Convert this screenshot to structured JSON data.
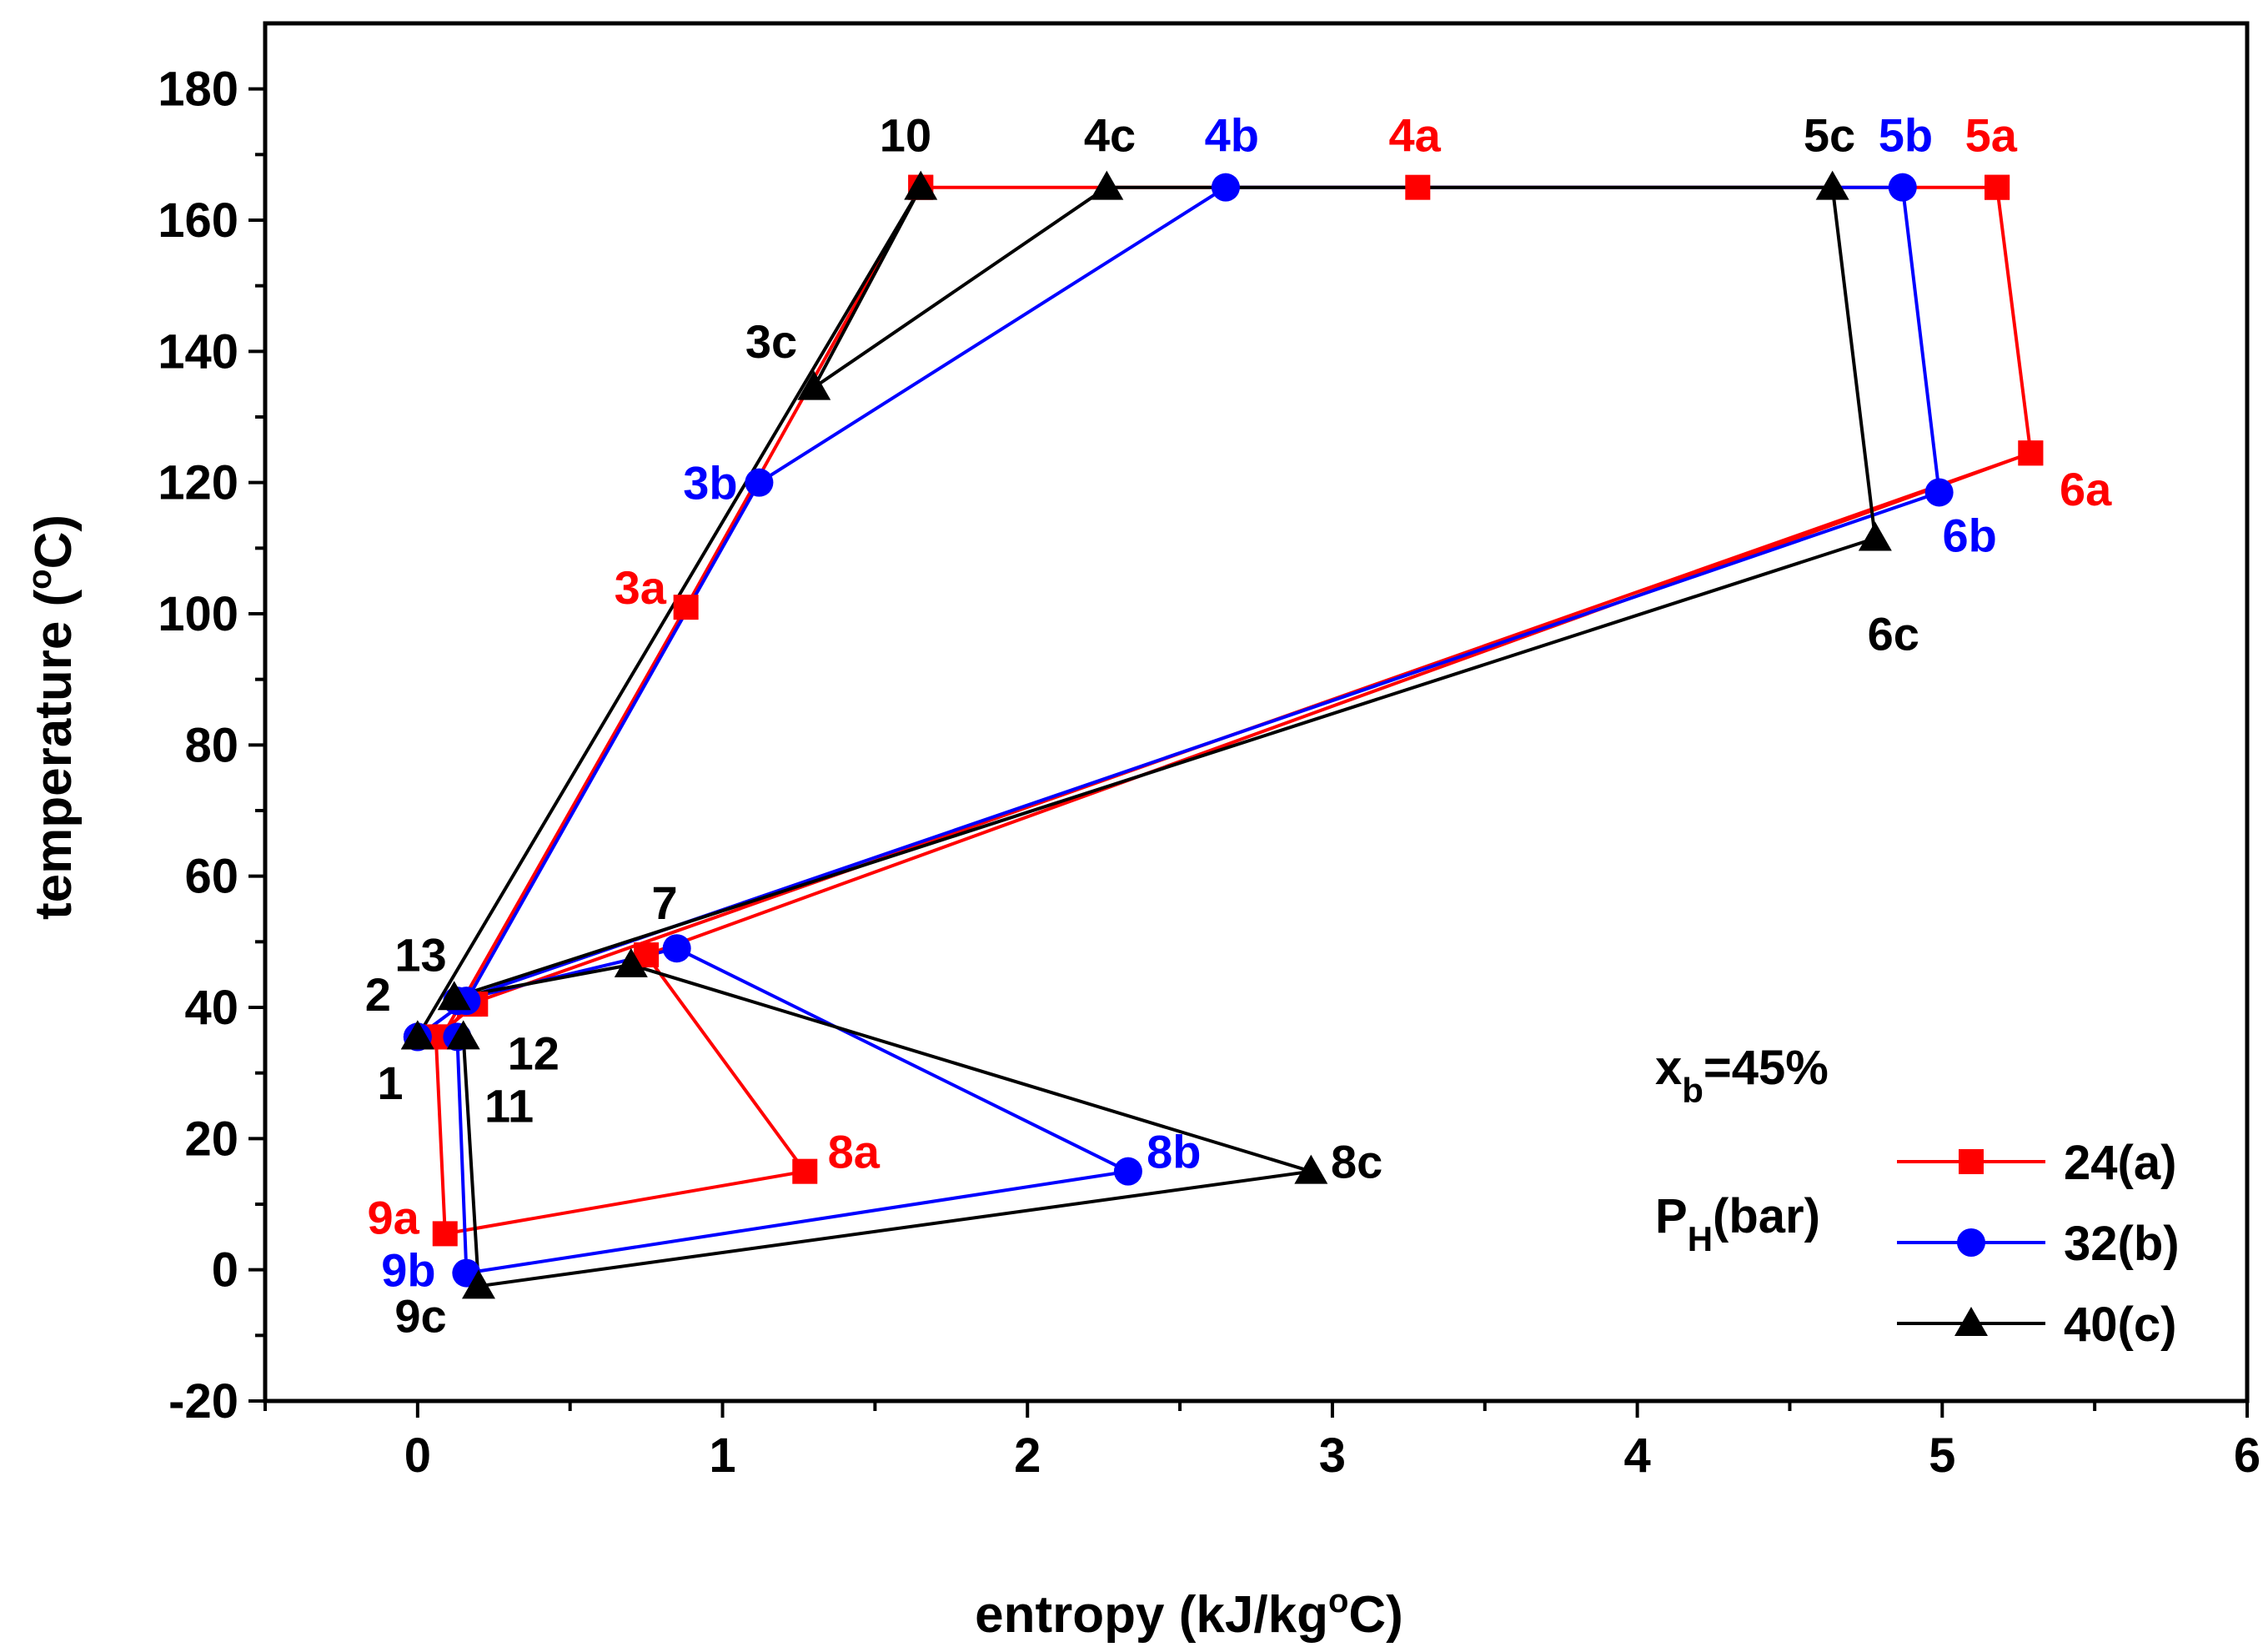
{
  "chart_data": {
    "type": "line",
    "title": "",
    "xlabel": "entropy (kJ/kg",
    "xlabel_sup": "o",
    "xlabel_tail": "C)",
    "ylabel": "temperature (",
    "ylabel_sup": "o",
    "ylabel_tail": "C)",
    "xlim": [
      -0.5,
      6
    ],
    "ylim": [
      -20,
      190
    ],
    "xticks": [
      0,
      1,
      2,
      3,
      4,
      5,
      6
    ],
    "xtick_labels": [
      "0",
      "1",
      "2",
      "3",
      "4",
      "5",
      "6"
    ],
    "yticks": [
      -20,
      0,
      20,
      40,
      60,
      80,
      100,
      120,
      140,
      160,
      180
    ],
    "ytick_labels": [
      "-20",
      "0",
      "20",
      "40",
      "60",
      "80",
      "100",
      "120",
      "140",
      "160",
      "180"
    ],
    "grid": false,
    "annotation_xb_main": "x",
    "annotation_xb_sub": "b",
    "annotation_xb_tail": "=45%",
    "legend_title_main": "P",
    "legend_title_sub": "H",
    "legend_title_tail": "(bar)",
    "legend_position": "bottom-right",
    "series": [
      {
        "name": "24(a)",
        "color": "#ff0000",
        "marker": "square",
        "x": [
          1.65,
          3.28,
          5.18,
          5.29,
          0.17,
          0.08,
          0.88,
          1.65,
          5.18,
          5.29,
          0.75,
          1.27,
          0.09,
          0.06,
          0.19
        ],
        "y": [
          165,
          165,
          165,
          124.5,
          40.5,
          35.5,
          101,
          165,
          165,
          124.5,
          48,
          15,
          5.5,
          35.5,
          40.5
        ]
      },
      {
        "name": "32(b)",
        "color": "#0000ff",
        "marker": "circle",
        "x": [
          0.0,
          0.13,
          0.16,
          2.33,
          0.85,
          0.13,
          4.99,
          4.87,
          2.65,
          1.12,
          0.16,
          0.0
        ],
        "y": [
          35.5,
          35.5,
          -0.5,
          15,
          49,
          41,
          118.5,
          165,
          165,
          120,
          41,
          35.5
        ]
      },
      {
        "name": "40(c)",
        "color": "#000000",
        "marker": "triangle",
        "x": [
          0.0,
          0.15,
          0.2,
          2.93,
          0.7,
          0.12,
          4.78,
          4.64,
          2.26,
          1.3,
          1.65,
          0.0
        ],
        "y": [
          35.5,
          35.5,
          -2.5,
          15,
          46.5,
          41.5,
          111.5,
          165,
          165,
          134.5,
          165,
          35.5
        ]
      }
    ],
    "point_labels": [
      {
        "text": "10",
        "color": "#000000",
        "x": 1.6,
        "y": 170.5
      },
      {
        "text": "4c",
        "color": "#000000",
        "x": 2.27,
        "y": 170.5
      },
      {
        "text": "4b",
        "color": "#0000ff",
        "x": 2.67,
        "y": 170.5
      },
      {
        "text": "4a",
        "color": "#ff0000",
        "x": 3.27,
        "y": 170.5
      },
      {
        "text": "5c",
        "color": "#000000",
        "x": 4.63,
        "y": 170.5
      },
      {
        "text": "5b",
        "color": "#0000ff",
        "x": 4.88,
        "y": 170.5
      },
      {
        "text": "5a",
        "color": "#ff0000",
        "x": 5.16,
        "y": 170.5
      },
      {
        "text": "3c",
        "color": "#000000",
        "x": 1.16,
        "y": 139
      },
      {
        "text": "3b",
        "color": "#0000ff",
        "x": 0.96,
        "y": 117.5
      },
      {
        "text": "3a",
        "color": "#ff0000",
        "x": 0.73,
        "y": 101.5
      },
      {
        "text": "6a",
        "color": "#ff0000",
        "x": 5.47,
        "y": 116.5
      },
      {
        "text": "6b",
        "color": "#0000ff",
        "x": 5.09,
        "y": 109.5
      },
      {
        "text": "6c",
        "color": "#000000",
        "x": 4.84,
        "y": 94.5
      },
      {
        "text": "7",
        "color": "#000000",
        "x": 0.81,
        "y": 53.5
      },
      {
        "text": "13",
        "color": "#000000",
        "x": 0.01,
        "y": 45.5
      },
      {
        "text": "2",
        "color": "#000000",
        "x": -0.13,
        "y": 39.5
      },
      {
        "text": "12",
        "color": "#000000",
        "x": 0.38,
        "y": 30.5
      },
      {
        "text": "1",
        "color": "#000000",
        "x": -0.09,
        "y": 26
      },
      {
        "text": "11",
        "color": "#000000",
        "x": 0.3,
        "y": 22.5
      },
      {
        "text": "8a",
        "color": "#ff0000",
        "x": 1.43,
        "y": 15.5
      },
      {
        "text": "8b",
        "color": "#0000ff",
        "x": 2.48,
        "y": 15.5
      },
      {
        "text": "8c",
        "color": "#000000",
        "x": 3.08,
        "y": 14
      },
      {
        "text": "9a",
        "color": "#ff0000",
        "x": -0.08,
        "y": 5.5
      },
      {
        "text": "9b",
        "color": "#0000ff",
        "x": -0.03,
        "y": -2.5
      },
      {
        "text": "9c",
        "color": "#000000",
        "x": 0.01,
        "y": -9.5
      }
    ]
  }
}
